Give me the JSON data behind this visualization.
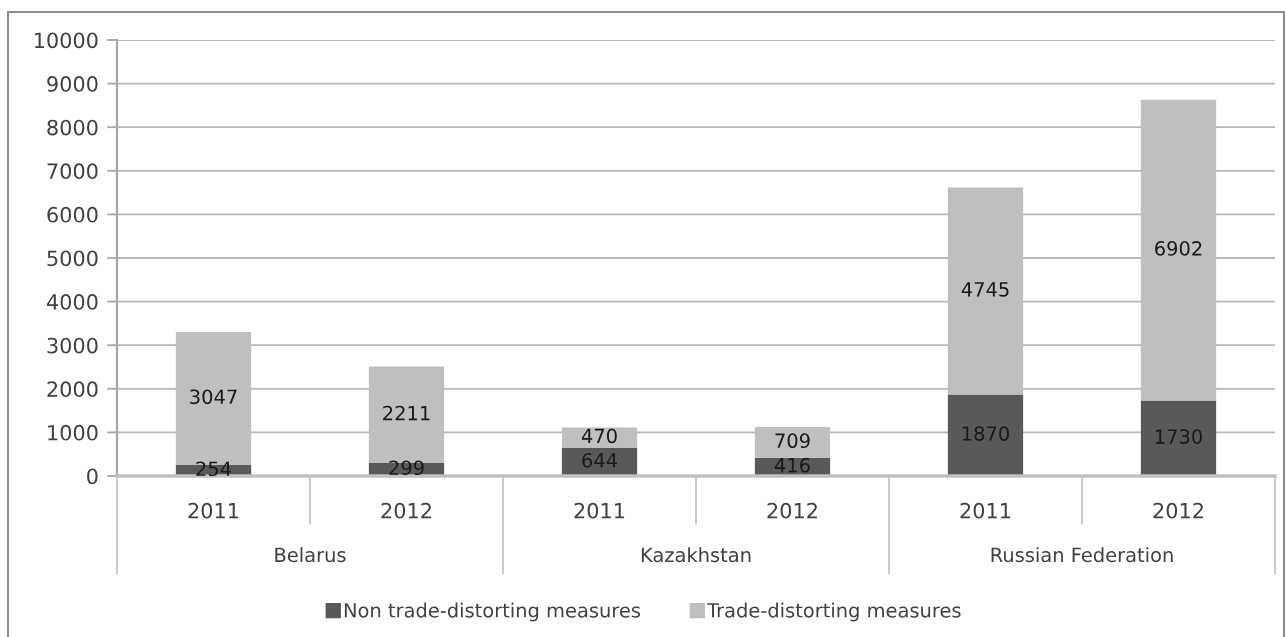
{
  "chart_data": {
    "type": "bar",
    "stacked": true,
    "categories": [
      "2011",
      "2012",
      "2011",
      "2012",
      "2011",
      "2012"
    ],
    "series": [
      {
        "name": "Non trade-distorting measures",
        "color": "#595959",
        "values": [
          254,
          299,
          644,
          416,
          1870,
          1730
        ]
      },
      {
        "name": "Trade-distorting measures",
        "color": "#bfbfbf",
        "values": [
          3047,
          2211,
          470,
          709,
          4745,
          6902
        ]
      }
    ],
    "ylim": [
      0,
      10000
    ],
    "yticks": [
      0,
      1000,
      2000,
      3000,
      4000,
      5000,
      6000,
      7000,
      8000,
      9000,
      10000
    ],
    "grid": "y",
    "legend": "bottom",
    "data_labels": true,
    "annotations": [
      "Belarus",
      "Kazakhstan",
      "Russian Federation"
    ]
  }
}
